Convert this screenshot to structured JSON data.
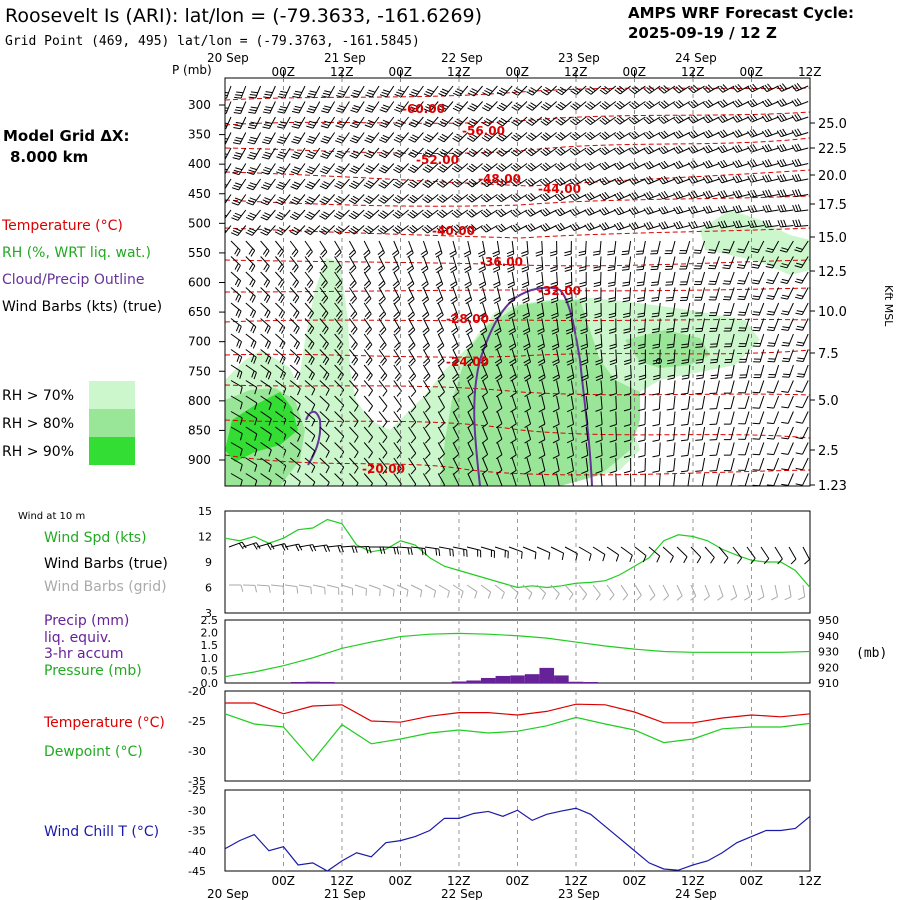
{
  "header": {
    "title": "Roosevelt Is (ARI):  lat/lon = (-79.3633, -161.6269)",
    "subtitle": "Grid Point (469, 495) lat/lon = (-79.3763, -161.5845)",
    "cycle_label": "AMPS WRF Forecast Cycle:",
    "cycle_value": "2025-09-19 / 12  Z"
  },
  "left_labels": {
    "grid_title": "Model Grid ΔX:",
    "grid_value": "8.000 km",
    "temperature": "Temperature (°C)",
    "rh": "RH (%, WRT liq. wat.)",
    "cloud": "Cloud/Precip Outline",
    "wind_barbs": "Wind Barbs (kts) (true)"
  },
  "rh_legend": [
    {
      "label": "RH > 70%",
      "color": "#ccf7cc"
    },
    {
      "label": "RH > 80%",
      "color": "#99e699"
    },
    {
      "label": "RH > 90%",
      "color": "#33dd33"
    }
  ],
  "colors": {
    "temperature": "#dd0000",
    "dewpoint": "#22cc22",
    "wind_speed": "#22cc22",
    "pressure": "#22cc22",
    "precip": "#662299",
    "cloud": "#663399",
    "wind_chill": "#1a1aaa",
    "grid_barbs": "#aaaaaa"
  },
  "time_axis": {
    "top_dates": [
      "20 Sep",
      "21 Sep",
      "22 Sep",
      "23 Sep",
      "24 Sep"
    ],
    "hour_labels": [
      "00Z",
      "12Z",
      "00Z",
      "12Z",
      "00Z",
      "12Z",
      "00Z",
      "12Z",
      "00Z",
      "12Z"
    ]
  },
  "chart_data": [
    {
      "type": "heatmap",
      "panel": "cross-section",
      "ylabel_left": "P (mb)",
      "ylabel_right": "Kft MSL",
      "pressure_ticks": [
        300,
        350,
        400,
        450,
        500,
        550,
        600,
        650,
        700,
        750,
        800,
        850,
        900
      ],
      "height_ticks": [
        "25.0",
        "22.5",
        "20.0",
        "17.5",
        "15.0",
        "12.5",
        "10.0",
        "7.5",
        "5.0",
        "2.5",
        "1.23"
      ],
      "temperature_contour_labels": [
        "-60.00",
        "-56.00",
        "-52.00",
        "-48.00",
        "-44.00",
        "-40.00",
        "-36.00",
        "-32.00",
        "-28.00",
        "-24.00",
        "-20.00"
      ]
    },
    {
      "type": "line",
      "panel": "wind-10m",
      "header": "Wind at 10 m",
      "labels": {
        "speed": "Wind Spd (kts)",
        "barbs_true": "Wind Barbs (true)",
        "barbs_grid": "Wind Barbs (grid)"
      },
      "yticks": [
        3,
        6,
        9,
        12,
        15
      ],
      "ylim": [
        3,
        15
      ],
      "x_hours": [
        0,
        3,
        6,
        9,
        12,
        15,
        18,
        21,
        24,
        27,
        30,
        33,
        36,
        39,
        42,
        45,
        48,
        51,
        54,
        57,
        60,
        63,
        66,
        69,
        72,
        75,
        78,
        81,
        84,
        87,
        90,
        93,
        96,
        99,
        102,
        105,
        108,
        111,
        114,
        117,
        120
      ],
      "speed": [
        11.8,
        11.5,
        12.0,
        11.2,
        11.8,
        12.8,
        13.0,
        14.0,
        13.5,
        11.0,
        10.2,
        10.5,
        11.5,
        11.0,
        9.5,
        8.5,
        8.0,
        7.5,
        7.0,
        6.5,
        6.0,
        6.2,
        6.0,
        6.2,
        6.5,
        6.6,
        6.8,
        7.5,
        8.5,
        9.5,
        11.5,
        12.2,
        12.0,
        11.5,
        10.5,
        9.8,
        9.2,
        9.0,
        9.0,
        8.0,
        6.0
      ]
    },
    {
      "type": "bar",
      "panel": "precip-pressure",
      "labels": {
        "precip": [
          "Precip (mm)",
          "liq. equiv.",
          "3-hr accum"
        ],
        "pressure": "Pressure (mb)",
        "unit_right": "(mb)"
      },
      "precip_yticks": [
        "0.0",
        "0.5",
        "1.0",
        "1.5",
        "2.0",
        "2.5"
      ],
      "precip_ylim": [
        0,
        2.5
      ],
      "pressure_yticks": [
        910,
        920,
        930,
        940,
        950
      ],
      "pressure_ylim": [
        910,
        950
      ],
      "x_hours": [
        0,
        6,
        12,
        18,
        24,
        30,
        36,
        42,
        48,
        54,
        60,
        66,
        72,
        78,
        84,
        90,
        96,
        102,
        108,
        114,
        120
      ],
      "pressure": [
        914.0,
        917.0,
        921.0,
        926.0,
        932.0,
        936.0,
        939.5,
        941.0,
        941.5,
        941.0,
        940.0,
        938.5,
        936.0,
        933.5,
        931.5,
        930.0,
        929.5,
        929.5,
        929.5,
        929.5,
        930.0
      ],
      "precip_x_hours": [
        15,
        18,
        21,
        48,
        51,
        54,
        57,
        60,
        63,
        66,
        69,
        72,
        75
      ],
      "precip": [
        0.04,
        0.05,
        0.04,
        0.06,
        0.1,
        0.2,
        0.28,
        0.3,
        0.35,
        0.6,
        0.3,
        0.05,
        0.04
      ]
    },
    {
      "type": "line",
      "panel": "temperature-dewpoint",
      "labels": {
        "temperature": "Temperature (°C)",
        "dewpoint": "Dewpoint (°C)"
      },
      "yticks": [
        -20,
        -25,
        -30,
        -35
      ],
      "ylim": [
        -35,
        -20
      ],
      "x_hours": [
        0,
        6,
        12,
        18,
        24,
        30,
        36,
        42,
        48,
        54,
        60,
        66,
        72,
        78,
        84,
        90,
        96,
        102,
        108,
        114,
        120
      ],
      "temperature": [
        -22.0,
        -22.0,
        -23.8,
        -22.5,
        -22.3,
        -25.0,
        -25.2,
        -24.2,
        -23.6,
        -23.6,
        -24.0,
        -23.4,
        -22.2,
        -22.3,
        -23.5,
        -25.3,
        -25.3,
        -24.5,
        -24.0,
        -24.3,
        -23.8
      ],
      "dewpoint": [
        -23.8,
        -25.5,
        -26.0,
        -31.6,
        -25.6,
        -28.8,
        -28.0,
        -27.0,
        -26.5,
        -27.0,
        -26.7,
        -25.8,
        -24.4,
        -25.5,
        -26.5,
        -28.6,
        -28.0,
        -26.3,
        -26.0,
        -26.0,
        -25.4
      ]
    },
    {
      "type": "line",
      "panel": "wind-chill",
      "labels": {
        "wind_chill": "Wind Chill T (°C)"
      },
      "yticks": [
        -25,
        -30,
        -35,
        -40,
        -45
      ],
      "ylim": [
        -45,
        -25
      ],
      "x_hours": [
        0,
        3,
        6,
        9,
        12,
        15,
        18,
        21,
        24,
        27,
        30,
        33,
        36,
        39,
        42,
        45,
        48,
        51,
        54,
        57,
        60,
        63,
        66,
        69,
        72,
        75,
        78,
        81,
        84,
        87,
        90,
        93,
        96,
        99,
        102,
        105,
        108,
        111,
        114,
        117,
        120
      ],
      "wind_chill": [
        -39.5,
        -37.5,
        -36.0,
        -40.0,
        -39.0,
        -43.5,
        -43.0,
        -45.0,
        -42.5,
        -40.5,
        -41.5,
        -38.0,
        -37.5,
        -36.5,
        -35.0,
        -32.0,
        -32.0,
        -30.8,
        -30.3,
        -31.5,
        -30.0,
        -32.5,
        -31.0,
        -30.2,
        -29.5,
        -31.0,
        -34.0,
        -37.0,
        -40.0,
        -43.0,
        -44.5,
        -44.8,
        -43.5,
        -42.5,
        -40.5,
        -38.0,
        -36.5,
        -35.0,
        -35.0,
        -34.5,
        -31.5
      ]
    }
  ]
}
